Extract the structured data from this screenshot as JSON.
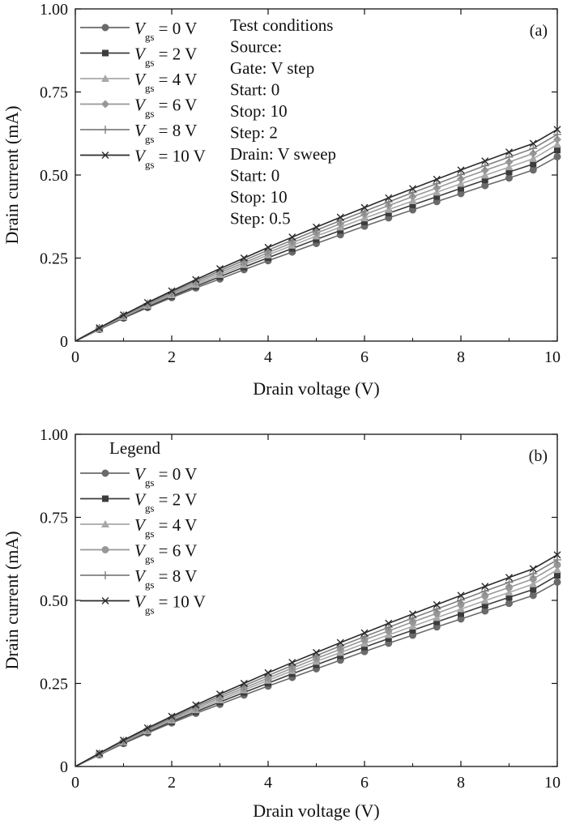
{
  "chart_data": [
    {
      "id": "a",
      "type": "line",
      "panel_label": "(a)",
      "xlabel": "Drain voltage (V)",
      "ylabel": "Drain current (mA)",
      "xlim": [
        0,
        10
      ],
      "ylim": [
        0,
        1.0
      ],
      "xticks": [
        "0",
        "2",
        "4",
        "6",
        "8",
        "10"
      ],
      "yticks": [
        "0",
        "0.25",
        "0.50",
        "0.75",
        "1.00"
      ],
      "grid": false,
      "legend_position": "top-left",
      "legend_title": "",
      "x": [
        0,
        0.5,
        1,
        1.5,
        2,
        2.5,
        3,
        3.5,
        4,
        4.5,
        5,
        5.5,
        6,
        6.5,
        7,
        7.5,
        8,
        8.5,
        9,
        9.5,
        10
      ],
      "series": [
        {
          "name": "0 V",
          "color": "#6a6a6a",
          "marker": "circle",
          "values": [
            0,
            0.035,
            0.069,
            0.101,
            0.131,
            0.16,
            0.187,
            0.215,
            0.242,
            0.268,
            0.294,
            0.32,
            0.346,
            0.371,
            0.395,
            0.42,
            0.444,
            0.468,
            0.491,
            0.515,
            0.555
          ]
        },
        {
          "name": "2 V",
          "color": "#3c3c3c",
          "marker": "square",
          "values": [
            0,
            0.036,
            0.071,
            0.104,
            0.135,
            0.165,
            0.194,
            0.223,
            0.251,
            0.279,
            0.306,
            0.333,
            0.359,
            0.385,
            0.41,
            0.435,
            0.46,
            0.485,
            0.509,
            0.533,
            0.575
          ]
        },
        {
          "name": "4 V",
          "color": "#a8a8a8",
          "marker": "triangle",
          "values": [
            0,
            0.037,
            0.073,
            0.107,
            0.139,
            0.17,
            0.2,
            0.23,
            0.259,
            0.288,
            0.316,
            0.343,
            0.37,
            0.396,
            0.422,
            0.448,
            0.474,
            0.499,
            0.524,
            0.549,
            0.592
          ]
        },
        {
          "name": "6 V",
          "color": "#979797",
          "marker": "diamond",
          "values": [
            0,
            0.038,
            0.075,
            0.11,
            0.143,
            0.175,
            0.206,
            0.236,
            0.266,
            0.296,
            0.325,
            0.353,
            0.381,
            0.408,
            0.435,
            0.461,
            0.488,
            0.514,
            0.539,
            0.565,
            0.607
          ]
        },
        {
          "name": "8 V",
          "color": "#808080",
          "marker": "plus",
          "values": [
            0,
            0.039,
            0.077,
            0.113,
            0.147,
            0.18,
            0.212,
            0.243,
            0.274,
            0.304,
            0.334,
            0.363,
            0.391,
            0.419,
            0.447,
            0.474,
            0.501,
            0.528,
            0.554,
            0.58,
            0.622
          ]
        },
        {
          "name": "10 V",
          "color": "#2b2b2b",
          "marker": "cross",
          "values": [
            0,
            0.04,
            0.079,
            0.116,
            0.151,
            0.185,
            0.218,
            0.25,
            0.282,
            0.313,
            0.343,
            0.373,
            0.402,
            0.431,
            0.459,
            0.487,
            0.515,
            0.542,
            0.569,
            0.595,
            0.637
          ]
        }
      ],
      "annotations": [
        "Test conditions",
        "Source:",
        "Gate: V step",
        "Start: 0",
        "Stop: 10",
        "Step: 2",
        "Drain: V sweep",
        "Start: 0",
        "Stop: 10",
        "Step: 0.5"
      ]
    },
    {
      "id": "b",
      "type": "line",
      "panel_label": "(b)",
      "xlabel": "Drain voltage (V)",
      "ylabel": "Drain current (mA)",
      "xlim": [
        0,
        10
      ],
      "ylim": [
        0,
        1.0
      ],
      "xticks": [
        "0",
        "2",
        "4",
        "6",
        "8",
        "10"
      ],
      "yticks": [
        "0",
        "0.25",
        "0.50",
        "0.75",
        "1.00"
      ],
      "grid": false,
      "legend_position": "top-left",
      "legend_title": "Legend",
      "x": [
        0,
        0.5,
        1,
        1.5,
        2,
        2.5,
        3,
        3.5,
        4,
        4.5,
        5,
        5.5,
        6,
        6.5,
        7,
        7.5,
        8,
        8.5,
        9,
        9.5,
        10
      ],
      "series": [
        {
          "name": "0 V",
          "color": "#6a6a6a",
          "marker": "circle",
          "values": [
            0,
            0.035,
            0.069,
            0.101,
            0.131,
            0.16,
            0.187,
            0.215,
            0.242,
            0.268,
            0.294,
            0.32,
            0.346,
            0.371,
            0.395,
            0.42,
            0.444,
            0.468,
            0.491,
            0.515,
            0.555
          ]
        },
        {
          "name": "2 V",
          "color": "#3c3c3c",
          "marker": "square",
          "values": [
            0,
            0.036,
            0.071,
            0.104,
            0.135,
            0.165,
            0.194,
            0.223,
            0.251,
            0.279,
            0.306,
            0.333,
            0.359,
            0.385,
            0.41,
            0.435,
            0.46,
            0.485,
            0.509,
            0.533,
            0.575
          ]
        },
        {
          "name": "4 V",
          "color": "#a8a8a8",
          "marker": "triangle",
          "values": [
            0,
            0.037,
            0.073,
            0.107,
            0.139,
            0.17,
            0.2,
            0.23,
            0.259,
            0.288,
            0.316,
            0.343,
            0.37,
            0.396,
            0.422,
            0.448,
            0.474,
            0.499,
            0.524,
            0.549,
            0.592
          ]
        },
        {
          "name": "6 V",
          "color": "#979797",
          "marker": "circle",
          "values": [
            0,
            0.038,
            0.075,
            0.11,
            0.143,
            0.175,
            0.206,
            0.236,
            0.266,
            0.296,
            0.325,
            0.353,
            0.381,
            0.408,
            0.435,
            0.461,
            0.488,
            0.514,
            0.539,
            0.565,
            0.607
          ]
        },
        {
          "name": "8 V",
          "color": "#808080",
          "marker": "plus",
          "values": [
            0,
            0.039,
            0.077,
            0.113,
            0.147,
            0.18,
            0.212,
            0.243,
            0.274,
            0.304,
            0.334,
            0.363,
            0.391,
            0.419,
            0.447,
            0.474,
            0.501,
            0.528,
            0.554,
            0.58,
            0.622
          ]
        },
        {
          "name": "10 V",
          "color": "#2b2b2b",
          "marker": "cross",
          "values": [
            0,
            0.04,
            0.079,
            0.116,
            0.151,
            0.185,
            0.218,
            0.25,
            0.282,
            0.313,
            0.343,
            0.373,
            0.402,
            0.431,
            0.459,
            0.487,
            0.515,
            0.542,
            0.569,
            0.595,
            0.637
          ]
        }
      ],
      "annotations": []
    }
  ]
}
